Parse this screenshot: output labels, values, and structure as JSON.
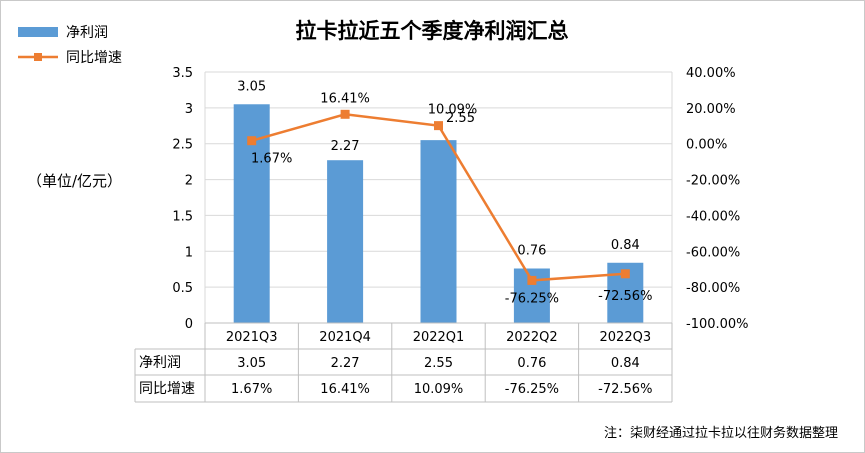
{
  "chart_data": {
    "type": "bar",
    "title": "拉卡拉近五个季度净利润汇总",
    "ylabel": "（单位/亿元）",
    "categories": [
      "2021Q3",
      "2021Q4",
      "2022Q1",
      "2022Q2",
      "2022Q3"
    ],
    "series": [
      {
        "name": "净利润",
        "type": "bar",
        "axis": "left",
        "color": "#5b9bd5",
        "values": [
          3.05,
          2.27,
          2.55,
          0.76,
          0.84
        ],
        "labels": [
          "3.05",
          "2.27",
          "2.55",
          "0.76",
          "0.84"
        ]
      },
      {
        "name": "同比增速",
        "type": "line",
        "axis": "right",
        "color": "#ed7d31",
        "values": [
          1.67,
          16.41,
          10.09,
          -76.25,
          -72.56
        ],
        "labels": [
          "1.67%",
          "16.41%",
          "10.09%",
          "-76.25%",
          "-72.56%"
        ]
      }
    ],
    "y_left": {
      "min": 0,
      "max": 3.5,
      "step": 0.5,
      "ticks": [
        "0",
        "0.5",
        "1",
        "1.5",
        "2",
        "2.5",
        "3",
        "3.5"
      ]
    },
    "y_right": {
      "min": -100,
      "max": 40,
      "step": 20,
      "ticks": [
        "-100.00%",
        "-80.00%",
        "-60.00%",
        "-40.00%",
        "-20.00%",
        "0.00%",
        "20.00%",
        "40.00%"
      ]
    },
    "legend_position": "top-left",
    "grid": true,
    "data_table": {
      "rows": [
        {
          "label": "净利润",
          "cells": [
            "3.05",
            "2.27",
            "2.55",
            "0.76",
            "0.84"
          ]
        },
        {
          "label": "同比增速",
          "cells": [
            "1.67%",
            "16.41%",
            "10.09%",
            "-76.25%",
            "-72.56%"
          ]
        }
      ]
    },
    "note": "注：柒财经通过拉卡拉以往财务数据整理"
  }
}
